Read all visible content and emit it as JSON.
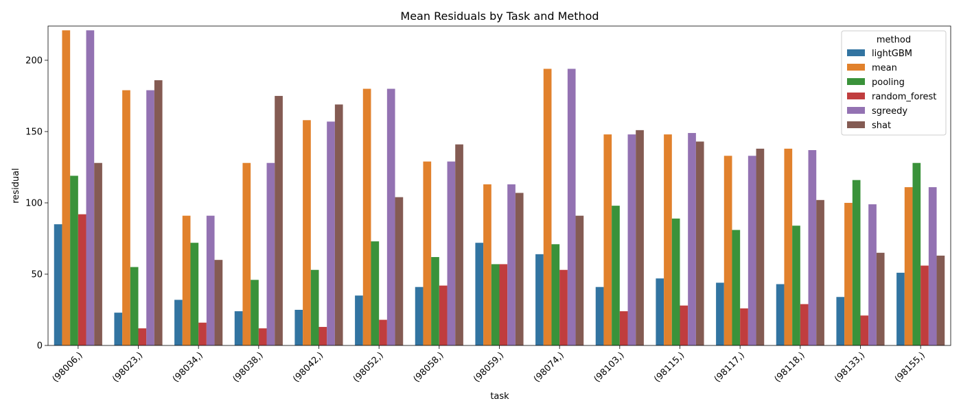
{
  "chart_data": {
    "type": "bar",
    "title": "Mean Residuals by Task and Method",
    "xlabel": "task",
    "ylabel": "residual",
    "ylim": [
      0,
      224
    ],
    "yticks": [
      0,
      50,
      100,
      150,
      200
    ],
    "ytick_labels": [
      "0",
      "50",
      "100",
      "150",
      "200"
    ],
    "grid": false,
    "legend": {
      "title": "method",
      "placement": "top-right"
    },
    "categories": [
      "(98006,)",
      "(98023,)",
      "(98034,)",
      "(98038,)",
      "(98042,)",
      "(98052,)",
      "(98058,)",
      "(98059,)",
      "(98074,)",
      "(98103,)",
      "(98115,)",
      "(98117,)",
      "(98118,)",
      "(98133,)",
      "(98155,)"
    ],
    "series": [
      {
        "name": "lightGBM",
        "color": "#3274a1",
        "values": [
          85,
          23,
          32,
          24,
          25,
          35,
          41,
          72,
          64,
          41,
          47,
          44,
          43,
          34,
          51
        ]
      },
      {
        "name": "mean",
        "color": "#e1812c",
        "values": [
          221,
          179,
          91,
          128,
          158,
          180,
          129,
          113,
          194,
          148,
          148,
          133,
          138,
          100,
          111
        ]
      },
      {
        "name": "pooling",
        "color": "#3a923a",
        "values": [
          119,
          55,
          72,
          46,
          53,
          73,
          62,
          57,
          71,
          98,
          89,
          81,
          84,
          116,
          128
        ]
      },
      {
        "name": "random_forest",
        "color": "#c03d3e",
        "values": [
          92,
          12,
          16,
          12,
          13,
          18,
          42,
          57,
          53,
          24,
          28,
          26,
          29,
          21,
          56
        ]
      },
      {
        "name": "sgreedy",
        "color": "#9372b2",
        "values": [
          221,
          179,
          91,
          128,
          157,
          180,
          129,
          113,
          194,
          148,
          149,
          133,
          137,
          99,
          111
        ]
      },
      {
        "name": "shat",
        "color": "#845b53",
        "values": [
          128,
          186,
          60,
          175,
          169,
          104,
          141,
          107,
          91,
          151,
          143,
          138,
          102,
          65,
          63
        ]
      }
    ]
  }
}
